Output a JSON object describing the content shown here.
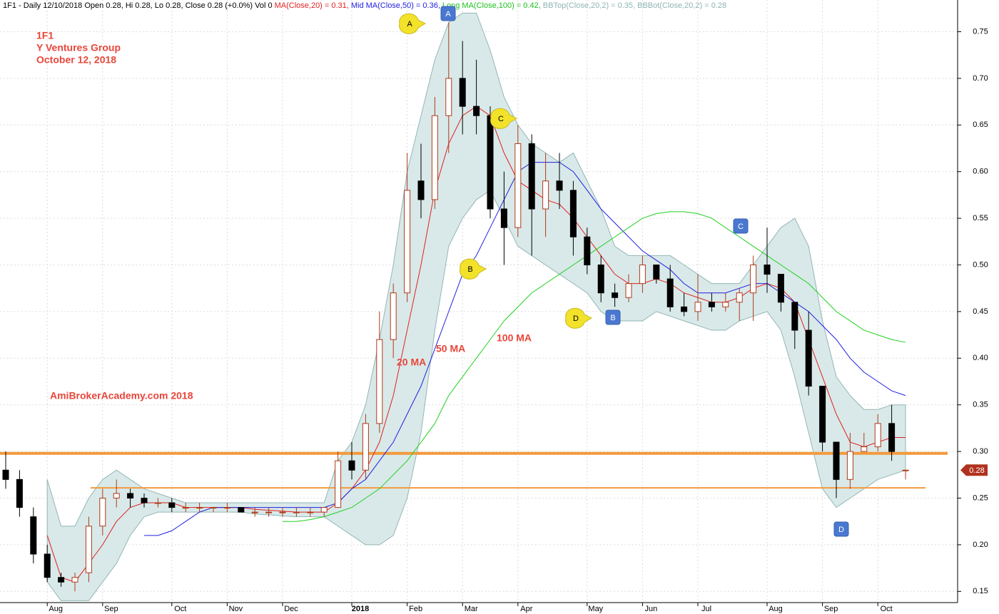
{
  "chart_data": {
    "type": "candlestick",
    "header": [
      {
        "text": "1F1 - Daily 12/10/2018 Open 0.28, Hi 0.28, Lo 0.28, Close 0.28 (+0.0%) Vol 0",
        "color": "#000000"
      },
      {
        "text": "MA(Close,20) = 0.31,",
        "color": "#e02020"
      },
      {
        "text": "Mid MA(Close,50) = 0.36,",
        "color": "#2020e0"
      },
      {
        "text": "Long MA(Close,100) = 0.42,",
        "color": "#20c020"
      },
      {
        "text": "BBTop(Close,20,2) = 0.35,",
        "color": "#8fb3b3"
      },
      {
        "text": "BBBot(Close,20,2) = 0.28",
        "color": "#8fb3b3"
      }
    ],
    "title_lines": [
      "1F1",
      "Y Ventures Group",
      "October 12, 2018"
    ],
    "watermark": "AmiBrokerAcademy.com  2018",
    "ma_labels": [
      "20 MA",
      "50 MA",
      "100 MA"
    ],
    "markers": [
      {
        "text": "A",
        "style": "yellow"
      },
      {
        "text": "A",
        "style": "blue"
      },
      {
        "text": "C",
        "style": "yellow"
      },
      {
        "text": "B",
        "style": "yellow"
      },
      {
        "text": "D",
        "style": "yellow"
      },
      {
        "text": "B",
        "style": "blue"
      },
      {
        "text": "C",
        "style": "blue"
      },
      {
        "text": "D",
        "style": "blue"
      }
    ],
    "categories": [
      null,
      null,
      null,
      "Aug",
      null,
      null,
      null,
      "Sep",
      null,
      null,
      null,
      null,
      "Oct",
      null,
      null,
      null,
      "Nov",
      null,
      null,
      null,
      "Dec",
      null,
      null,
      null,
      null,
      "2018",
      null,
      null,
      null,
      "Feb",
      null,
      null,
      null,
      "Mar",
      null,
      null,
      null,
      "Apr",
      null,
      null,
      null,
      null,
      "May",
      null,
      null,
      null,
      "Jun",
      null,
      null,
      null,
      "Jul",
      null,
      null,
      null,
      null,
      "Aug",
      null,
      null,
      null,
      "Sep",
      null,
      null,
      null,
      "Oct",
      null,
      null
    ],
    "open": [
      0.28,
      0.27,
      0.23,
      0.19,
      0.165,
      0.16,
      0.17,
      0.22,
      0.25,
      0.255,
      0.25,
      0.245,
      0.245,
      0.24,
      0.24,
      0.24,
      0.24,
      0.24,
      0.235,
      0.235,
      0.235,
      0.235,
      0.235,
      0.235,
      0.24,
      0.29,
      0.28,
      0.33,
      0.42,
      0.47,
      0.59,
      0.57,
      0.66,
      0.7,
      0.67,
      0.66,
      0.56,
      0.54,
      0.63,
      0.56,
      0.59,
      0.58,
      0.53,
      0.5,
      0.47,
      0.465,
      0.48,
      0.5,
      0.485,
      0.455,
      0.45,
      0.46,
      0.455,
      0.46,
      0.47,
      0.5,
      0.49,
      0.46,
      0.43,
      0.37,
      0.31,
      0.27,
      0.3,
      0.305,
      0.33,
      0.28
    ],
    "high": [
      0.3,
      0.28,
      0.24,
      0.2,
      0.17,
      0.17,
      0.23,
      0.26,
      0.27,
      0.26,
      0.255,
      0.25,
      0.25,
      0.245,
      0.245,
      0.24,
      0.245,
      0.24,
      0.24,
      0.24,
      0.24,
      0.24,
      0.24,
      0.24,
      0.3,
      0.31,
      0.34,
      0.45,
      0.48,
      0.62,
      0.63,
      0.68,
      0.76,
      0.74,
      0.72,
      0.67,
      0.6,
      0.65,
      0.64,
      0.62,
      0.62,
      0.59,
      0.54,
      0.51,
      0.48,
      0.49,
      0.51,
      0.5,
      0.5,
      0.47,
      0.49,
      0.47,
      0.47,
      0.475,
      0.51,
      0.54,
      0.49,
      0.46,
      0.45,
      0.37,
      0.31,
      0.32,
      0.32,
      0.34,
      0.35,
      0.28
    ],
    "low": [
      0.26,
      0.23,
      0.18,
      0.16,
      0.155,
      0.15,
      0.16,
      0.21,
      0.24,
      0.24,
      0.24,
      0.24,
      0.235,
      0.235,
      0.235,
      0.235,
      0.235,
      0.235,
      0.23,
      0.23,
      0.23,
      0.23,
      0.23,
      0.23,
      0.24,
      0.27,
      0.27,
      0.32,
      0.4,
      0.46,
      0.55,
      0.56,
      0.62,
      0.64,
      0.64,
      0.55,
      0.5,
      0.53,
      0.51,
      0.53,
      0.56,
      0.51,
      0.49,
      0.46,
      0.455,
      0.46,
      0.47,
      0.48,
      0.45,
      0.445,
      0.44,
      0.45,
      0.45,
      0.44,
      0.44,
      0.47,
      0.45,
      0.41,
      0.36,
      0.3,
      0.25,
      0.26,
      0.3,
      0.3,
      0.29,
      0.27
    ],
    "close": [
      0.27,
      0.24,
      0.19,
      0.165,
      0.16,
      0.165,
      0.22,
      0.25,
      0.255,
      0.25,
      0.245,
      0.245,
      0.24,
      0.24,
      0.24,
      0.24,
      0.24,
      0.235,
      0.235,
      0.235,
      0.235,
      0.235,
      0.235,
      0.24,
      0.29,
      0.28,
      0.33,
      0.42,
      0.47,
      0.58,
      0.57,
      0.66,
      0.7,
      0.67,
      0.66,
      0.56,
      0.54,
      0.63,
      0.56,
      0.59,
      0.58,
      0.53,
      0.5,
      0.47,
      0.465,
      0.48,
      0.5,
      0.485,
      0.455,
      0.45,
      0.46,
      0.455,
      0.46,
      0.47,
      0.5,
      0.49,
      0.46,
      0.43,
      0.37,
      0.31,
      0.27,
      0.3,
      0.305,
      0.33,
      0.3,
      0.28
    ],
    "up_color": "#b03a1a",
    "down_color": "#000000",
    "series": [
      {
        "name": "MA(Close,20)",
        "color": "#e02020",
        "values": [
          null,
          null,
          null,
          0.21,
          0.165,
          0.16,
          0.18,
          0.2,
          0.225,
          0.24,
          0.245,
          0.245,
          0.245,
          0.24,
          0.24,
          0.24,
          0.24,
          0.24,
          0.238,
          0.237,
          0.236,
          0.235,
          0.235,
          0.235,
          0.245,
          0.26,
          0.28,
          0.31,
          0.36,
          0.43,
          0.5,
          0.58,
          0.63,
          0.66,
          0.67,
          0.66,
          0.62,
          0.59,
          0.58,
          0.57,
          0.565,
          0.55,
          0.53,
          0.51,
          0.49,
          0.48,
          0.48,
          0.485,
          0.48,
          0.47,
          0.465,
          0.46,
          0.46,
          0.465,
          0.475,
          0.48,
          0.475,
          0.46,
          0.42,
          0.38,
          0.34,
          0.31,
          0.305,
          0.31,
          0.315,
          0.315
        ]
      },
      {
        "name": "Mid MA(Close,50)",
        "color": "#2020e0",
        "values": [
          null,
          null,
          null,
          null,
          null,
          null,
          null,
          null,
          null,
          null,
          0.21,
          0.21,
          0.215,
          0.225,
          0.235,
          0.24,
          0.24,
          0.24,
          0.24,
          0.24,
          0.24,
          0.24,
          0.24,
          0.24,
          0.245,
          0.26,
          0.27,
          0.29,
          0.31,
          0.34,
          0.37,
          0.41,
          0.45,
          0.49,
          0.51,
          0.54,
          0.57,
          0.6,
          0.61,
          0.61,
          0.61,
          0.6,
          0.58,
          0.56,
          0.545,
          0.53,
          0.515,
          0.505,
          0.495,
          0.48,
          0.47,
          0.47,
          0.47,
          0.475,
          0.48,
          0.48,
          0.47,
          0.46,
          0.45,
          0.435,
          0.42,
          0.4,
          0.385,
          0.375,
          0.365,
          0.36
        ]
      },
      {
        "name": "Long MA(Close,100)",
        "color": "#20d020",
        "values": [
          null,
          null,
          null,
          null,
          null,
          null,
          null,
          null,
          null,
          null,
          null,
          null,
          null,
          null,
          null,
          null,
          null,
          null,
          null,
          null,
          0.225,
          0.225,
          0.227,
          0.23,
          0.235,
          0.24,
          0.25,
          0.26,
          0.275,
          0.29,
          0.31,
          0.33,
          0.36,
          0.38,
          0.4,
          0.42,
          0.44,
          0.455,
          0.47,
          0.48,
          0.49,
          0.5,
          0.51,
          0.52,
          0.53,
          0.54,
          0.55,
          0.555,
          0.557,
          0.557,
          0.555,
          0.55,
          0.54,
          0.53,
          0.52,
          0.51,
          0.5,
          0.49,
          0.48,
          0.465,
          0.45,
          0.44,
          0.43,
          0.425,
          0.42,
          0.417
        ]
      }
    ],
    "bands": {
      "name_top": "BBTop(Close,20,2)",
      "name_bottom": "BBBot(Close,20,2)",
      "color": "#d9e9e9",
      "edge": "#93b5b5",
      "top": [
        null,
        null,
        null,
        0.27,
        0.22,
        0.22,
        0.25,
        0.27,
        0.28,
        0.27,
        0.26,
        0.255,
        0.25,
        0.245,
        0.245,
        0.245,
        0.245,
        0.245,
        0.245,
        0.245,
        0.245,
        0.245,
        0.245,
        0.245,
        0.29,
        0.31,
        0.35,
        0.42,
        0.5,
        0.6,
        0.66,
        0.72,
        0.76,
        0.77,
        0.77,
        0.73,
        0.68,
        0.65,
        0.63,
        0.62,
        0.61,
        0.62,
        0.59,
        0.56,
        0.52,
        0.51,
        0.51,
        0.51,
        0.51,
        0.5,
        0.49,
        0.48,
        0.48,
        0.48,
        0.5,
        0.52,
        0.54,
        0.55,
        0.52,
        0.44,
        0.38,
        0.36,
        0.345,
        0.345,
        0.35,
        0.35
      ],
      "bottom": [
        null,
        null,
        null,
        0.16,
        0.14,
        0.14,
        0.14,
        0.16,
        0.18,
        0.21,
        0.23,
        0.235,
        0.235,
        0.235,
        0.235,
        0.235,
        0.235,
        0.235,
        0.233,
        0.232,
        0.231,
        0.23,
        0.23,
        0.23,
        0.22,
        0.21,
        0.2,
        0.2,
        0.21,
        0.25,
        0.32,
        0.43,
        0.52,
        0.55,
        0.57,
        0.58,
        0.55,
        0.52,
        0.51,
        0.5,
        0.49,
        0.48,
        0.47,
        0.45,
        0.44,
        0.44,
        0.44,
        0.45,
        0.445,
        0.44,
        0.435,
        0.43,
        0.43,
        0.44,
        0.445,
        0.45,
        0.43,
        0.38,
        0.32,
        0.26,
        0.24,
        0.25,
        0.26,
        0.27,
        0.275,
        0.28
      ]
    },
    "hlines": [
      {
        "value": 0.298,
        "color": "#f39a3c",
        "width": 4
      },
      {
        "value": 0.261,
        "color": "#f39a3c",
        "width": 2
      }
    ],
    "last_price": 0.28,
    "ylim": [
      0.138,
      0.784
    ],
    "yticks": [
      0.15,
      {
        "value": 0.2,
        "label": "0.20"
      },
      0.25,
      {
        "value": 0.3,
        "label": "0.30"
      },
      0.35,
      {
        "value": 0.4,
        "label": "0.40"
      },
      0.45,
      {
        "value": 0.5,
        "label": "0.50"
      },
      0.55,
      {
        "value": 0.6,
        "label": "0.60"
      },
      0.65,
      {
        "value": 0.7,
        "label": "0.70"
      },
      0.75
    ],
    "grid": true
  }
}
